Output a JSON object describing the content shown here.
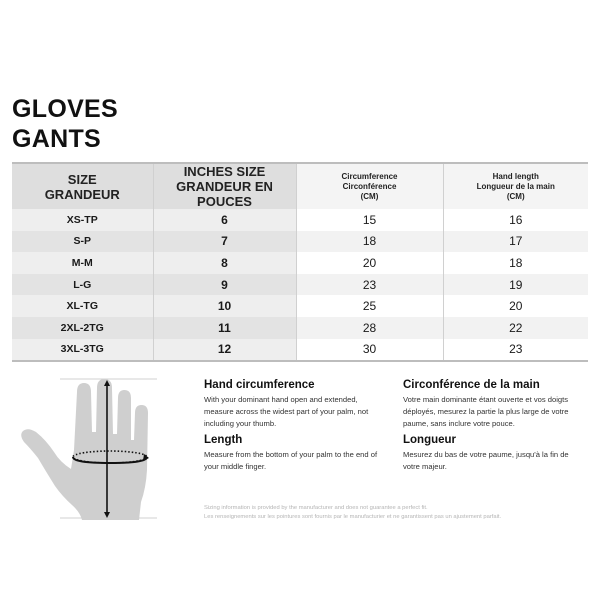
{
  "title": {
    "en": "GLOVES",
    "fr": "GANTS"
  },
  "table": {
    "headers": [
      {
        "line1": "SIZE",
        "line2": "GRANDEUR"
      },
      {
        "line1": "INCHES SIZE",
        "line2": "GRANDEUR EN POUCES"
      },
      {
        "line1": "Circumference",
        "line2": "Circonférence",
        "line3": "(CM)"
      },
      {
        "line1": "Hand length",
        "line2": "Longueur de la main",
        "line3": "(CM)"
      }
    ],
    "rows": [
      {
        "size": "XS-TP",
        "inches": "6",
        "circumference": "15",
        "length": "16"
      },
      {
        "size": "S-P",
        "inches": "7",
        "circumference": "18",
        "length": "17"
      },
      {
        "size": "M-M",
        "inches": "8",
        "circumference": "20",
        "length": "18"
      },
      {
        "size": "L-G",
        "inches": "9",
        "circumference": "23",
        "length": "19"
      },
      {
        "size": "XL-TG",
        "inches": "10",
        "circumference": "25",
        "length": "20"
      },
      {
        "size": "2XL-2TG",
        "inches": "11",
        "circumference": "28",
        "length": "22"
      },
      {
        "size": "3XL-3TG",
        "inches": "12",
        "circumference": "30",
        "length": "23"
      }
    ]
  },
  "instructions": {
    "en": {
      "circ_title": "Hand circumference",
      "circ_text": "With your dominant hand open and extended, measure across the widest part of your palm, not including your thumb.",
      "len_title": "Length",
      "len_text": "Measure from the bottom of your palm to the end of your middle finger."
    },
    "fr": {
      "circ_title": "Circonférence de la main",
      "circ_text": "Votre main dominante étant ouverte et vos doigts déployés, mesurez la partie la plus large de votre paume, sans inclure votre pouce.",
      "len_title": "Longueur",
      "len_text": "Mesurez du bas de votre paume, jusqu'à la fin de votre majeur."
    }
  },
  "disclaimer": {
    "en": "Sizing information is provided by the manufacturer and does not guarantee a perfect fit.",
    "fr": "Les renseignements sur les pointures sont fournis par le manufacturier et ne garantissent pas un ajustement parfait."
  },
  "illustration": {
    "icon": "hand-measurement-icon",
    "hand_color": "#cfcfcf"
  }
}
